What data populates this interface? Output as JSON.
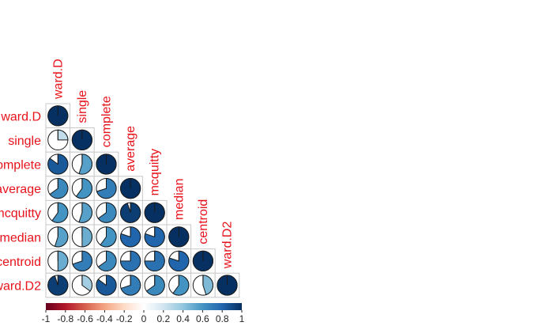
{
  "chart_data": {
    "type": "heatmap",
    "variant": "lower-triangular correlation matrix (pie glyphs)",
    "variables": [
      "ward.D",
      "single",
      "complete",
      "average",
      "mcquitty",
      "median",
      "centroid",
      "ward.D2"
    ],
    "matrix": [
      [
        1.0
      ],
      [
        0.25,
        1.0
      ],
      [
        0.85,
        0.55,
        1.0
      ],
      [
        0.65,
        0.6,
        0.7,
        1.0
      ],
      [
        0.6,
        0.55,
        0.65,
        0.95,
        1.0
      ],
      [
        0.55,
        0.5,
        0.6,
        0.8,
        0.8,
        1.0
      ],
      [
        0.5,
        0.7,
        0.65,
        0.75,
        0.75,
        0.8,
        1.0
      ],
      [
        0.95,
        0.35,
        0.85,
        0.7,
        0.65,
        0.6,
        0.45,
        1.0
      ]
    ],
    "colorbar": {
      "range": [
        -1,
        1
      ],
      "ticks": [
        "-1",
        "-0.8",
        "-0.6",
        "-0.4",
        "-0.2",
        "0",
        "0.2",
        "0.4",
        "0.6",
        "0.8",
        "1"
      ],
      "low_color": "#67001f",
      "mid_color": "#ffffff",
      "high_color": "#053061"
    },
    "label_color": "#e8121b"
  }
}
